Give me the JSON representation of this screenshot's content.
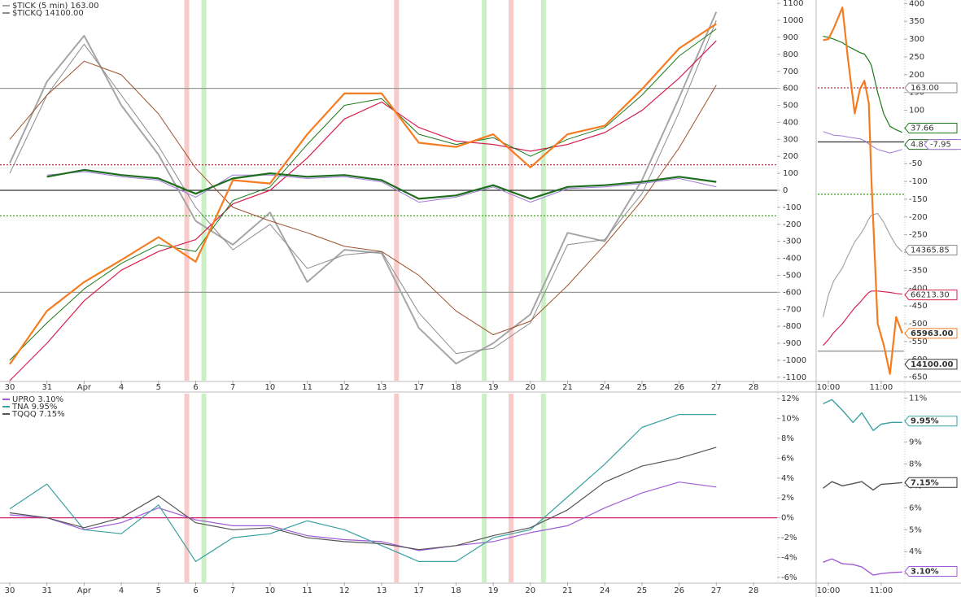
{
  "chart_data": [
    {
      "type": "line",
      "categories": [
        "30",
        "31",
        "Apr",
        "4",
        "5",
        "6",
        "7",
        "10",
        "11",
        "12",
        "13",
        "17",
        "18",
        "19",
        "20",
        "21",
        "24",
        "25",
        "26",
        "27",
        "28"
      ],
      "ylim": [
        -1120,
        1120
      ],
      "yticks": [
        1100,
        1000,
        900,
        800,
        700,
        600,
        500,
        400,
        300,
        200,
        100,
        0,
        -100,
        -200,
        -300,
        -400,
        -500,
        -600,
        -700,
        -800,
        -900,
        -1000,
        -1100
      ],
      "series": [
        {
          "name": "$TICK (5 min) 163.00",
          "color": "#a6a6a6",
          "width": 2,
          "values": [
            160,
            640,
            910,
            500,
            210,
            -180,
            -320,
            -130,
            -540,
            -350,
            -370,
            -810,
            -1020,
            -900,
            -730,
            -250,
            -300,
            60,
            545,
            1050,
            null
          ]
        },
        {
          "name": "$TICKQ 14100.00",
          "color": "#8c8c8c",
          "width": 1,
          "values": [
            100,
            560,
            860,
            560,
            260,
            -100,
            -350,
            -200,
            -460,
            -380,
            -360,
            -720,
            -960,
            -930,
            -780,
            -320,
            -290,
            -20,
            460,
            1000,
            null
          ]
        },
        {
          "color": "#a0522d",
          "width": 1,
          "values": [
            300,
            560,
            760,
            680,
            450,
            130,
            -100,
            -180,
            -250,
            -330,
            -360,
            -500,
            -710,
            -850,
            -770,
            -560,
            -320,
            -60,
            250,
            620,
            null
          ]
        },
        {
          "color": "#d6204e",
          "width": 1.2,
          "values": [
            -1120,
            -900,
            -650,
            -470,
            -360,
            -290,
            -80,
            0,
            190,
            420,
            520,
            370,
            290,
            270,
            230,
            270,
            340,
            470,
            660,
            880,
            null
          ]
        },
        {
          "color": "#1a7a1a",
          "width": 1,
          "values": [
            -1000,
            -780,
            -580,
            -430,
            -320,
            -360,
            -60,
            20,
            270,
            500,
            540,
            330,
            270,
            310,
            200,
            300,
            370,
            560,
            790,
            950,
            null
          ]
        },
        {
          "color": "#a07ad6",
          "width": 1,
          "values": [
            null,
            90,
            110,
            80,
            60,
            -40,
            90,
            90,
            70,
            80,
            50,
            -70,
            -40,
            20,
            -70,
            10,
            20,
            40,
            70,
            20,
            null
          ]
        },
        {
          "color": "#1f6e1f",
          "width": 2.2,
          "values": [
            null,
            80,
            120,
            90,
            70,
            -20,
            70,
            100,
            80,
            90,
            60,
            -50,
            -30,
            30,
            -50,
            20,
            30,
            50,
            80,
            50,
            null
          ]
        },
        {
          "color": "#f57c20",
          "width": 2.2,
          "values": [
            -1024,
            -710,
            -540,
            -410,
            -275,
            -420,
            60,
            40,
            330,
            570,
            570,
            280,
            255,
            330,
            135,
            330,
            380,
            595,
            835,
            980,
            null
          ]
        }
      ],
      "hlines": [
        {
          "value": 600,
          "color": "#999999",
          "dash": "none"
        },
        {
          "value": -600,
          "color": "#999999",
          "dash": "none"
        },
        {
          "value": 150,
          "color": "#c0304a",
          "dash": "2,2"
        },
        {
          "value": -150,
          "color": "#3aa61a",
          "dash": "2,2"
        },
        {
          "value": 0,
          "color": "#333333",
          "dash": "none"
        }
      ],
      "highlights": [
        {
          "x": 4.76,
          "color": "#f4a6a6"
        },
        {
          "x": 5.22,
          "color": "#a8e6a0"
        },
        {
          "x": 10.4,
          "color": "#f4a6a6"
        },
        {
          "x": 12.76,
          "color": "#a8e6a0"
        },
        {
          "x": 13.48,
          "color": "#f4a6a6"
        },
        {
          "x": 14.35,
          "color": "#a8e6a0"
        }
      ]
    },
    {
      "type": "line",
      "x": [
        -6,
        0,
        6,
        16,
        22,
        30,
        36,
        41,
        46,
        49,
        56,
        63,
        70,
        77,
        84
      ],
      "xlim": [
        -12,
        86
      ],
      "xticks": [
        {
          "value": 0,
          "label": "10:00"
        },
        {
          "value": 60,
          "label": "11:00"
        }
      ],
      "ylim": [
        -660,
        410
      ],
      "yticks": [
        400,
        350,
        300,
        250,
        200,
        150,
        100,
        50,
        0,
        -50,
        -100,
        -150,
        -200,
        -250,
        -300,
        -350,
        -400,
        -450,
        -500,
        -550,
        -600,
        -650
      ],
      "series": [
        {
          "color": "#a6a6a6",
          "width": 1.2,
          "values": [
            -481,
            -420,
            -380,
            -343,
            -310,
            -270,
            -250,
            -230,
            -205,
            -195,
            -190,
            -215,
            -250,
            -280,
            -298
          ]
        },
        {
          "color": "#d6204e",
          "width": 1.2,
          "values": [
            -561,
            -545,
            -525,
            -500,
            -480,
            -455,
            -440,
            -425,
            -412,
            -408,
            -408,
            -410,
            -412,
            -415,
            -417
          ]
        },
        {
          "color": "#a07ad6",
          "width": 1,
          "values": [
            40,
            35,
            30,
            28,
            25,
            22,
            20,
            15,
            5,
            0,
            -10,
            -15,
            -20,
            -15,
            -10
          ]
        },
        {
          "color": "#1a7a1a",
          "width": 1.2,
          "values": [
            308,
            305,
            300,
            290,
            280,
            270,
            262,
            258,
            240,
            225,
            150,
            90,
            55,
            45,
            38
          ]
        },
        {
          "color": "#f57c20",
          "width": 2.2,
          "values": [
            297,
            300,
            330,
            389,
            250,
            91,
            160,
            183,
            120,
            -100,
            -500,
            -560,
            -641,
            -481,
            -527
          ]
        }
      ],
      "hlines": [
        {
          "value": 163,
          "color": "#c0304a",
          "dash": "2,2"
        },
        {
          "value": 11,
          "color": "#333333",
          "dash": "none"
        },
        {
          "value": -136,
          "color": "#3aa61a",
          "dash": "2,2"
        },
        {
          "value": -577,
          "color": "#999999",
          "dash": "none"
        }
      ],
      "tags": [
        {
          "y": 163,
          "text": "163.00",
          "color": "#888888"
        },
        {
          "y": 50,
          "text": "37.66",
          "color": "#1a7a1a"
        },
        {
          "y": 4,
          "text": "4.87",
          "color": "#1f6e1f"
        },
        {
          "y": 4,
          "text": "-7.95",
          "color": "#a07ad6"
        },
        {
          "y": -293,
          "text": "14365.85",
          "color": "#8c8c8c"
        },
        {
          "y": -419,
          "text": "66213.30",
          "color": "#d6204e"
        },
        {
          "y": -527,
          "text": "65963.00",
          "color": "#f57c20",
          "bold": true
        },
        {
          "y": -614,
          "text": "14100.00",
          "color": "#333333",
          "bold": true
        }
      ]
    },
    {
      "type": "line",
      "categories": [
        "30",
        "31",
        "Apr",
        "4",
        "5",
        "6",
        "7",
        "10",
        "11",
        "12",
        "13",
        "17",
        "18",
        "19",
        "20",
        "21",
        "24",
        "25",
        "26",
        "27",
        "28"
      ],
      "ylim": [
        -6.5,
        12.5
      ],
      "yticks": [
        {
          "value": 12,
          "label": "12%"
        },
        {
          "value": 10,
          "label": "10%"
        },
        {
          "value": 8,
          "label": "8%"
        },
        {
          "value": 6,
          "label": "6%"
        },
        {
          "value": 4,
          "label": "4%"
        },
        {
          "value": 2,
          "label": "2%"
        },
        {
          "value": 0,
          "label": "0%"
        },
        {
          "value": -2,
          "label": "-2%"
        },
        {
          "value": -4,
          "label": "-4%"
        },
        {
          "value": -6,
          "label": "-6%"
        }
      ],
      "series": [
        {
          "name": "UPRO 3.10%",
          "color": "#a05cd6",
          "width": 1.2,
          "values": [
            0.3,
            0,
            -1.2,
            -0.5,
            1.0,
            -0.2,
            -0.8,
            -0.8,
            -1.8,
            -2.2,
            -2.4,
            -3.3,
            -2.8,
            -2.4,
            -1.5,
            -0.8,
            1.0,
            2.5,
            3.6,
            3.1,
            null
          ]
        },
        {
          "name": "TNA 9.95%",
          "color": "#3aa0a0",
          "width": 1.2,
          "values": [
            0.9,
            3.4,
            -1.2,
            -1.6,
            1.3,
            -4.4,
            -2.0,
            -1.6,
            -0.3,
            -1.2,
            -2.8,
            -4.4,
            -4.4,
            -2.0,
            -1.2,
            2.1,
            5.4,
            9.1,
            10.4,
            10.4,
            null
          ]
        },
        {
          "name": "TQQQ 7.15%",
          "color": "#555555",
          "width": 1.2,
          "values": [
            0.5,
            0,
            -1.0,
            0,
            2.2,
            -0.5,
            -1.2,
            -1.0,
            -2.0,
            -2.4,
            -2.6,
            -3.2,
            -2.8,
            -1.8,
            -1.0,
            0.8,
            3.6,
            5.2,
            6.0,
            7.1,
            null
          ]
        }
      ],
      "hlines": [
        {
          "value": 0,
          "color": "#d6206e",
          "dash": "none"
        }
      ],
      "highlights": [
        {
          "x": 4.76,
          "color": "#f4a6a6"
        },
        {
          "x": 5.22,
          "color": "#a8e6a0"
        },
        {
          "x": 10.4,
          "color": "#f4a6a6"
        },
        {
          "x": 12.76,
          "color": "#a8e6a0"
        },
        {
          "x": 13.48,
          "color": "#f4a6a6"
        },
        {
          "x": 14.35,
          "color": "#a8e6a0"
        }
      ]
    },
    {
      "type": "line",
      "x": [
        -6,
        4,
        16,
        28,
        38,
        51,
        60,
        72,
        84
      ],
      "xlim": [
        -12,
        86
      ],
      "xticks": [
        {
          "value": 0,
          "label": "10:00"
        },
        {
          "value": 60,
          "label": "11:00"
        }
      ],
      "ylim": [
        2.6,
        11.2
      ],
      "yticks": [
        {
          "value": 11,
          "label": "11%"
        },
        {
          "value": 10,
          "label": "10%"
        },
        {
          "value": 9,
          "label": "9%"
        },
        {
          "value": 8,
          "label": "8%"
        },
        {
          "value": 7,
          "label": "7%"
        },
        {
          "value": 6,
          "label": "6%"
        },
        {
          "value": 5,
          "label": "5%"
        },
        {
          "value": 4,
          "label": "4%"
        },
        {
          "value": 3,
          "label": "3%"
        }
      ],
      "series": [
        {
          "color": "#3aa0a0",
          "width": 1.4,
          "values": [
            10.74,
            10.93,
            10.44,
            9.89,
            10.33,
            9.52,
            9.81,
            9.89,
            9.89
          ]
        },
        {
          "color": "#555555",
          "width": 1.4,
          "values": [
            6.89,
            7.19,
            7.0,
            7.1,
            7.19,
            6.81,
            7.07,
            7.1,
            7.15
          ]
        },
        {
          "color": "#a05cd6",
          "width": 1.4,
          "values": [
            3.52,
            3.67,
            3.45,
            3.41,
            3.3,
            2.93,
            3.0,
            3.05,
            3.07
          ]
        }
      ],
      "tags": [
        {
          "y": 9.95,
          "text": "9.95%",
          "color": "#3aa0a0",
          "bold": true
        },
        {
          "y": 7.15,
          "text": "7.15%",
          "color": "#333333",
          "bold": true
        },
        {
          "y": 3.1,
          "text": "3.10%",
          "color": "#a05cd6",
          "bold": true
        }
      ]
    }
  ]
}
